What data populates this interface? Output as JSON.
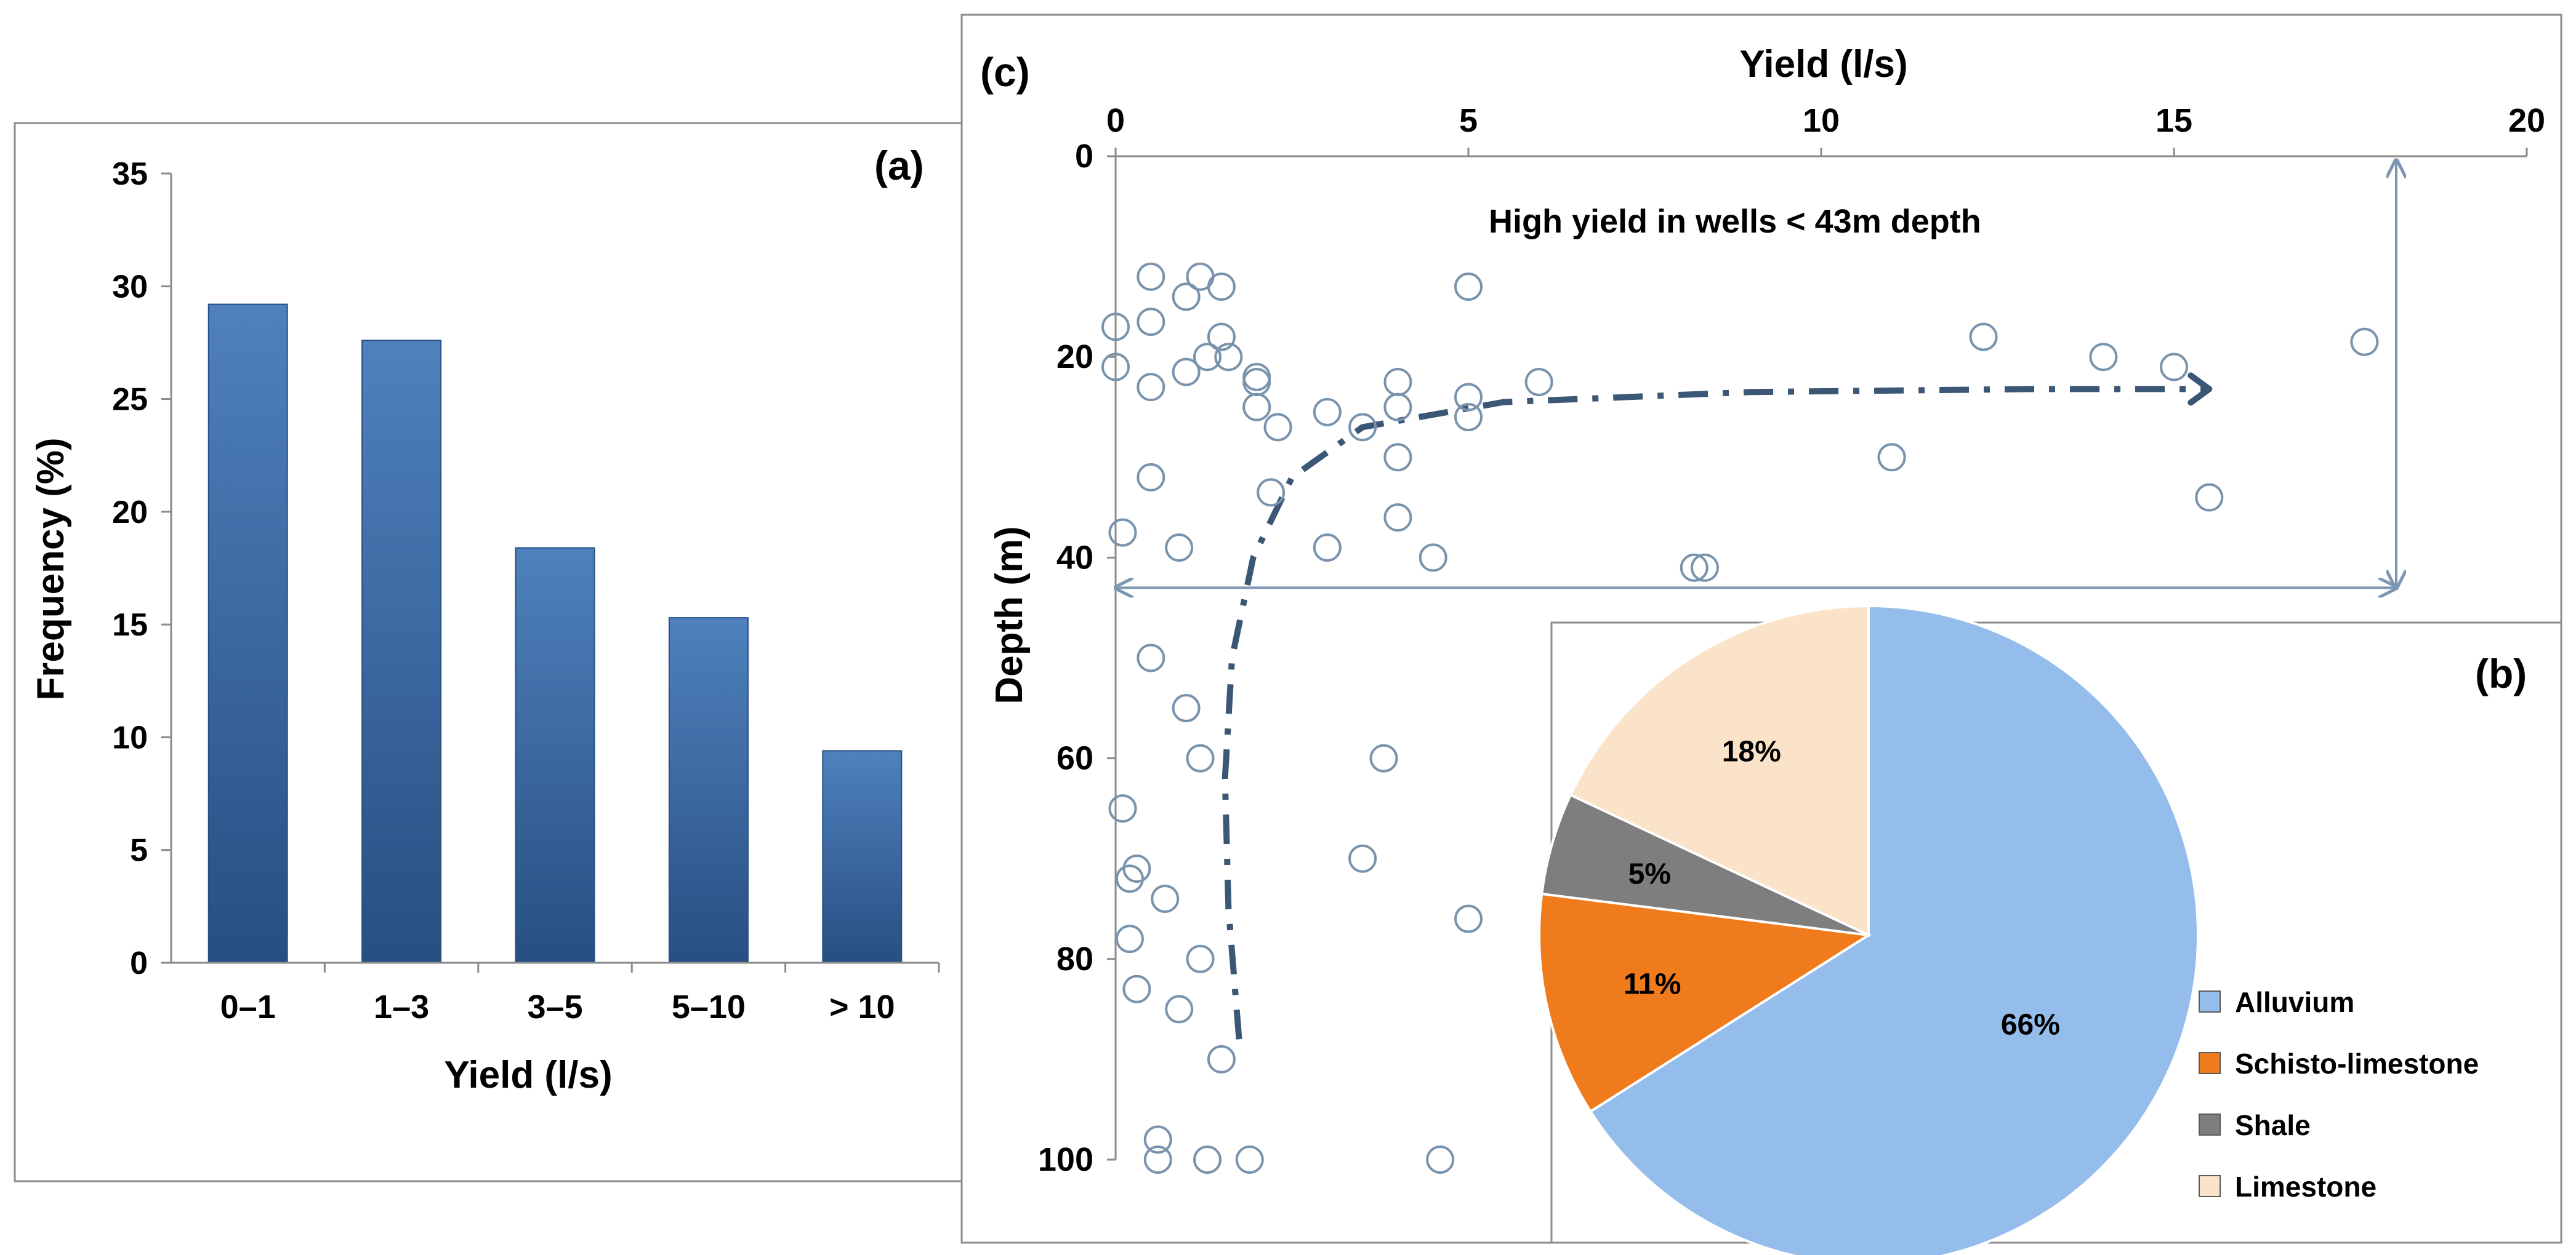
{
  "colors": {
    "bar_top": "#4f81bd",
    "bar_bottom": "#274f82",
    "marker": "#7a93ad",
    "trend": "#3b5775",
    "arrow": "#7d97b3",
    "frame": "#8c8c8c",
    "alluvium": "#95bdec",
    "schisto": "#f07b1d",
    "shale": "#7e7e7e",
    "limestone": "#fbe3ca"
  },
  "chart_data": [
    {
      "id": "a",
      "type": "bar",
      "panel_label": "(a)",
      "title": "",
      "xlabel": "Yield (l/s)",
      "ylabel": "Frequency (%)",
      "ylim": [
        0,
        35
      ],
      "yticks": [
        "0",
        "5",
        "10",
        "15",
        "20",
        "25",
        "30",
        "35"
      ],
      "categories": [
        "0–1",
        "1–3",
        "3–5",
        "5–10",
        "> 10"
      ],
      "values": [
        29.2,
        27.6,
        18.4,
        15.3,
        9.4
      ],
      "grid": false,
      "legend": "none"
    },
    {
      "id": "c",
      "type": "scatter",
      "panel_label": "(c)",
      "title": "",
      "xlabel": "Yield (l/s)",
      "ylabel": "Depth (m)",
      "x_axis_position": "top",
      "y_axis_inverted": true,
      "xlim": [
        0,
        20
      ],
      "ylim": [
        0,
        100
      ],
      "xticks": [
        "0",
        "5",
        "10",
        "15",
        "20"
      ],
      "yticks": [
        "0",
        "20",
        "40",
        "60",
        "80",
        "100"
      ],
      "annotation": "High yield in wells < 43m depth",
      "threshold_depth_m": 43,
      "points": [
        [
          0.5,
          12
        ],
        [
          1.2,
          12
        ],
        [
          1.5,
          13
        ],
        [
          5,
          13
        ],
        [
          1,
          14
        ],
        [
          0,
          17
        ],
        [
          0.5,
          16.5
        ],
        [
          1.5,
          18
        ],
        [
          12.3,
          18
        ],
        [
          17.7,
          18.5
        ],
        [
          1.3,
          20
        ],
        [
          1.6,
          20
        ],
        [
          14,
          20
        ],
        [
          0,
          21
        ],
        [
          1,
          21.5
        ],
        [
          15,
          21
        ],
        [
          2,
          22
        ],
        [
          4,
          22.5
        ],
        [
          6,
          22.5
        ],
        [
          2,
          22.5
        ],
        [
          0.5,
          23
        ],
        [
          5,
          24
        ],
        [
          2,
          25
        ],
        [
          4,
          25
        ],
        [
          3,
          25.5
        ],
        [
          5,
          26
        ],
        [
          2.3,
          27
        ],
        [
          3.5,
          27
        ],
        [
          4,
          30
        ],
        [
          11,
          30
        ],
        [
          0.5,
          32
        ],
        [
          2.2,
          33.5
        ],
        [
          15.5,
          34
        ],
        [
          4,
          36
        ],
        [
          0.1,
          37.5
        ],
        [
          0.9,
          39
        ],
        [
          3,
          39
        ],
        [
          4.5,
          40
        ],
        [
          8.2,
          41
        ],
        [
          8.35,
          41
        ],
        [
          0.5,
          50
        ],
        [
          1,
          55
        ],
        [
          1.2,
          60
        ],
        [
          3.8,
          60
        ],
        [
          0.1,
          65
        ],
        [
          3.5,
          70
        ],
        [
          0.3,
          71
        ],
        [
          0.2,
          72
        ],
        [
          0.7,
          74
        ],
        [
          5,
          76
        ],
        [
          0.2,
          78
        ],
        [
          1.2,
          80
        ],
        [
          0.3,
          83
        ],
        [
          0.9,
          85
        ],
        [
          1.5,
          90
        ],
        [
          0.6,
          98
        ],
        [
          0.6,
          100
        ],
        [
          1.3,
          100
        ],
        [
          1.9,
          100
        ],
        [
          4.6,
          100
        ]
      ],
      "trend_line": [
        [
          1.75,
          88
        ],
        [
          1.6,
          75
        ],
        [
          1.55,
          62
        ],
        [
          1.65,
          50
        ],
        [
          1.95,
          40
        ],
        [
          2.5,
          32
        ],
        [
          3.5,
          27
        ],
        [
          5.5,
          24.5
        ],
        [
          9,
          23.5
        ],
        [
          13,
          23.2
        ],
        [
          15.5,
          23.2
        ]
      ],
      "grid": false
    },
    {
      "id": "b",
      "type": "pie",
      "panel_label": "(b)",
      "title": "",
      "labels": [
        "Alluvium",
        "Schisto-limestone",
        "Shale",
        "Limestone"
      ],
      "slice_labels": [
        "66%",
        "11%",
        "5%",
        "18%"
      ],
      "values": [
        66,
        11,
        5,
        18
      ],
      "legend": "bottom-right"
    }
  ]
}
